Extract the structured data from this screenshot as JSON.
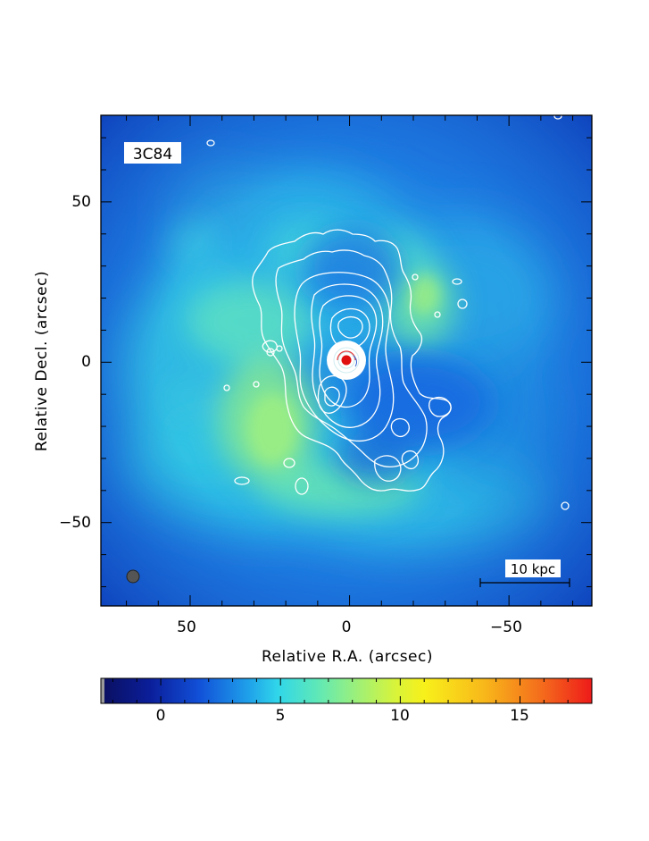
{
  "image": {
    "object_label": "3C84",
    "scale_bar_label": "10 kpc"
  },
  "axes": {
    "x_title": "Relative R.A. (arcsec)",
    "y_title": "Relative Decl. (arcsec)",
    "x_ticks": [
      {
        "value": 50,
        "label": "50"
      },
      {
        "value": 0,
        "label": "0"
      },
      {
        "value": -50,
        "label": "−50"
      }
    ],
    "y_ticks": [
      {
        "value": 50,
        "label": "50"
      },
      {
        "value": 0,
        "label": "0"
      },
      {
        "value": -50,
        "label": "−50"
      }
    ],
    "x_range": [
      78,
      -76
    ],
    "y_range": [
      -76,
      77
    ]
  },
  "colorbar": {
    "range": [
      -2.5,
      18
    ],
    "ticks": [
      {
        "value": 0,
        "label": "0"
      },
      {
        "value": 5,
        "label": "5"
      },
      {
        "value": 10,
        "label": "10"
      },
      {
        "value": 15,
        "label": "15"
      }
    ],
    "colors": [
      "#0a0f5e",
      "#0f3fc8",
      "#1f9ce6",
      "#3de0e6",
      "#8ef08a",
      "#f2f21e",
      "#f59a1a",
      "#f01e1e"
    ]
  },
  "colors": {
    "background_field": "#1e78e0",
    "emission_cyan": "#33d0e0",
    "emission_green": "#86e88a",
    "contours": "#ffffff",
    "nucleus": "#e01010"
  }
}
